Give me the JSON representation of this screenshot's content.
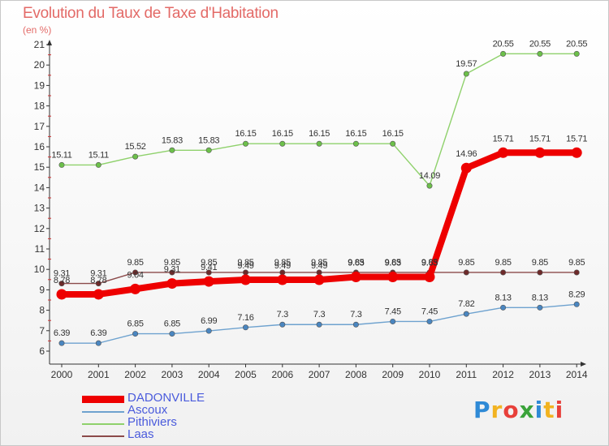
{
  "header": {
    "title": "Evolution du Taux de Taxe d'Habitation",
    "unit": "(en %)"
  },
  "brand": {
    "letters": [
      "P",
      "r",
      "o",
      "x",
      "i",
      "t",
      "i"
    ],
    "colors": [
      "#2f8ad6",
      "#f2b321",
      "#e8403a",
      "#3aa33a",
      "#2f8ad6",
      "#f2b321",
      "#e8403a"
    ]
  },
  "chart_data": {
    "type": "line",
    "title": "Evolution du Taux de Taxe d'Habitation",
    "ylabel": "(en %)",
    "xlabel": "",
    "x": [
      "2000",
      "2001",
      "2002",
      "2003",
      "2004",
      "2005",
      "2006",
      "2007",
      "2008",
      "2009",
      "2010",
      "2011",
      "2012",
      "2013",
      "2014"
    ],
    "ylim": [
      6,
      21
    ],
    "yticks": [
      "6",
      "7",
      "8",
      "9",
      "10",
      "11",
      "12",
      "13",
      "14",
      "15",
      "16",
      "17",
      "18",
      "19",
      "20",
      "21"
    ],
    "grid": false,
    "legend_position": "bottom-left",
    "series": [
      {
        "name": "Pithiviers",
        "color": "#8fd16c",
        "point_color": "#6cc04a",
        "values": [
          15.11,
          15.11,
          15.52,
          15.83,
          15.83,
          16.15,
          16.15,
          16.15,
          16.15,
          16.15,
          14.09,
          19.57,
          20.55,
          20.55,
          20.55
        ],
        "labels": [
          "15.11",
          "15.11",
          "15.52",
          "15.83",
          "15.83",
          "16.15",
          "16.15",
          "16.15",
          "16.15",
          "16.15",
          "14.09",
          "19.57",
          "20.55",
          "20.55",
          "20.55"
        ]
      },
      {
        "name": "Laas",
        "color": "#8b4a4a",
        "point_color": "#6e2a2a",
        "values": [
          9.31,
          9.31,
          9.85,
          9.85,
          9.85,
          9.85,
          9.85,
          9.85,
          9.85,
          9.85,
          9.85,
          9.85,
          9.85,
          9.85,
          9.85
        ],
        "labels": [
          "9.31",
          "9.31",
          "9.85",
          "9.85",
          "9.85",
          "9.85",
          "9.85",
          "9.85",
          "9.85",
          "9.85",
          "9.85",
          "9.85",
          "9.85",
          "9.85",
          "9.85"
        ]
      },
      {
        "name": "Ascoux",
        "color": "#6ea2cf",
        "point_color": "#4a86c0",
        "values": [
          6.39,
          6.39,
          6.85,
          6.85,
          6.99,
          7.16,
          7.3,
          7.3,
          7.3,
          7.45,
          7.45,
          7.82,
          8.13,
          8.13,
          8.29
        ],
        "labels": [
          "6.39",
          "6.39",
          "6.85",
          "6.85",
          "6.99",
          "7.16",
          "7.3",
          "7.3",
          "7.3",
          "7.45",
          "7.45",
          "7.82",
          "8.13",
          "8.13",
          "8.29"
        ]
      },
      {
        "name": "DADONVILLE",
        "color": "#ee0000",
        "point_color": "#ee0000",
        "values": [
          8.78,
          8.78,
          9.04,
          9.31,
          9.41,
          9.49,
          9.49,
          9.49,
          9.63,
          9.63,
          9.63,
          14.96,
          15.71,
          15.71,
          15.71
        ],
        "labels": [
          "8.78",
          "8.78",
          "9.04",
          "9.31",
          "9.41",
          "9.49",
          "9.49",
          "9.49",
          "9.63",
          "9.63",
          "9.63",
          "14.96",
          "15.71",
          "15.71",
          "15.71"
        ]
      }
    ],
    "legend": [
      "DADONVILLE",
      "Ascoux",
      "Pithiviers",
      "Laas"
    ]
  }
}
